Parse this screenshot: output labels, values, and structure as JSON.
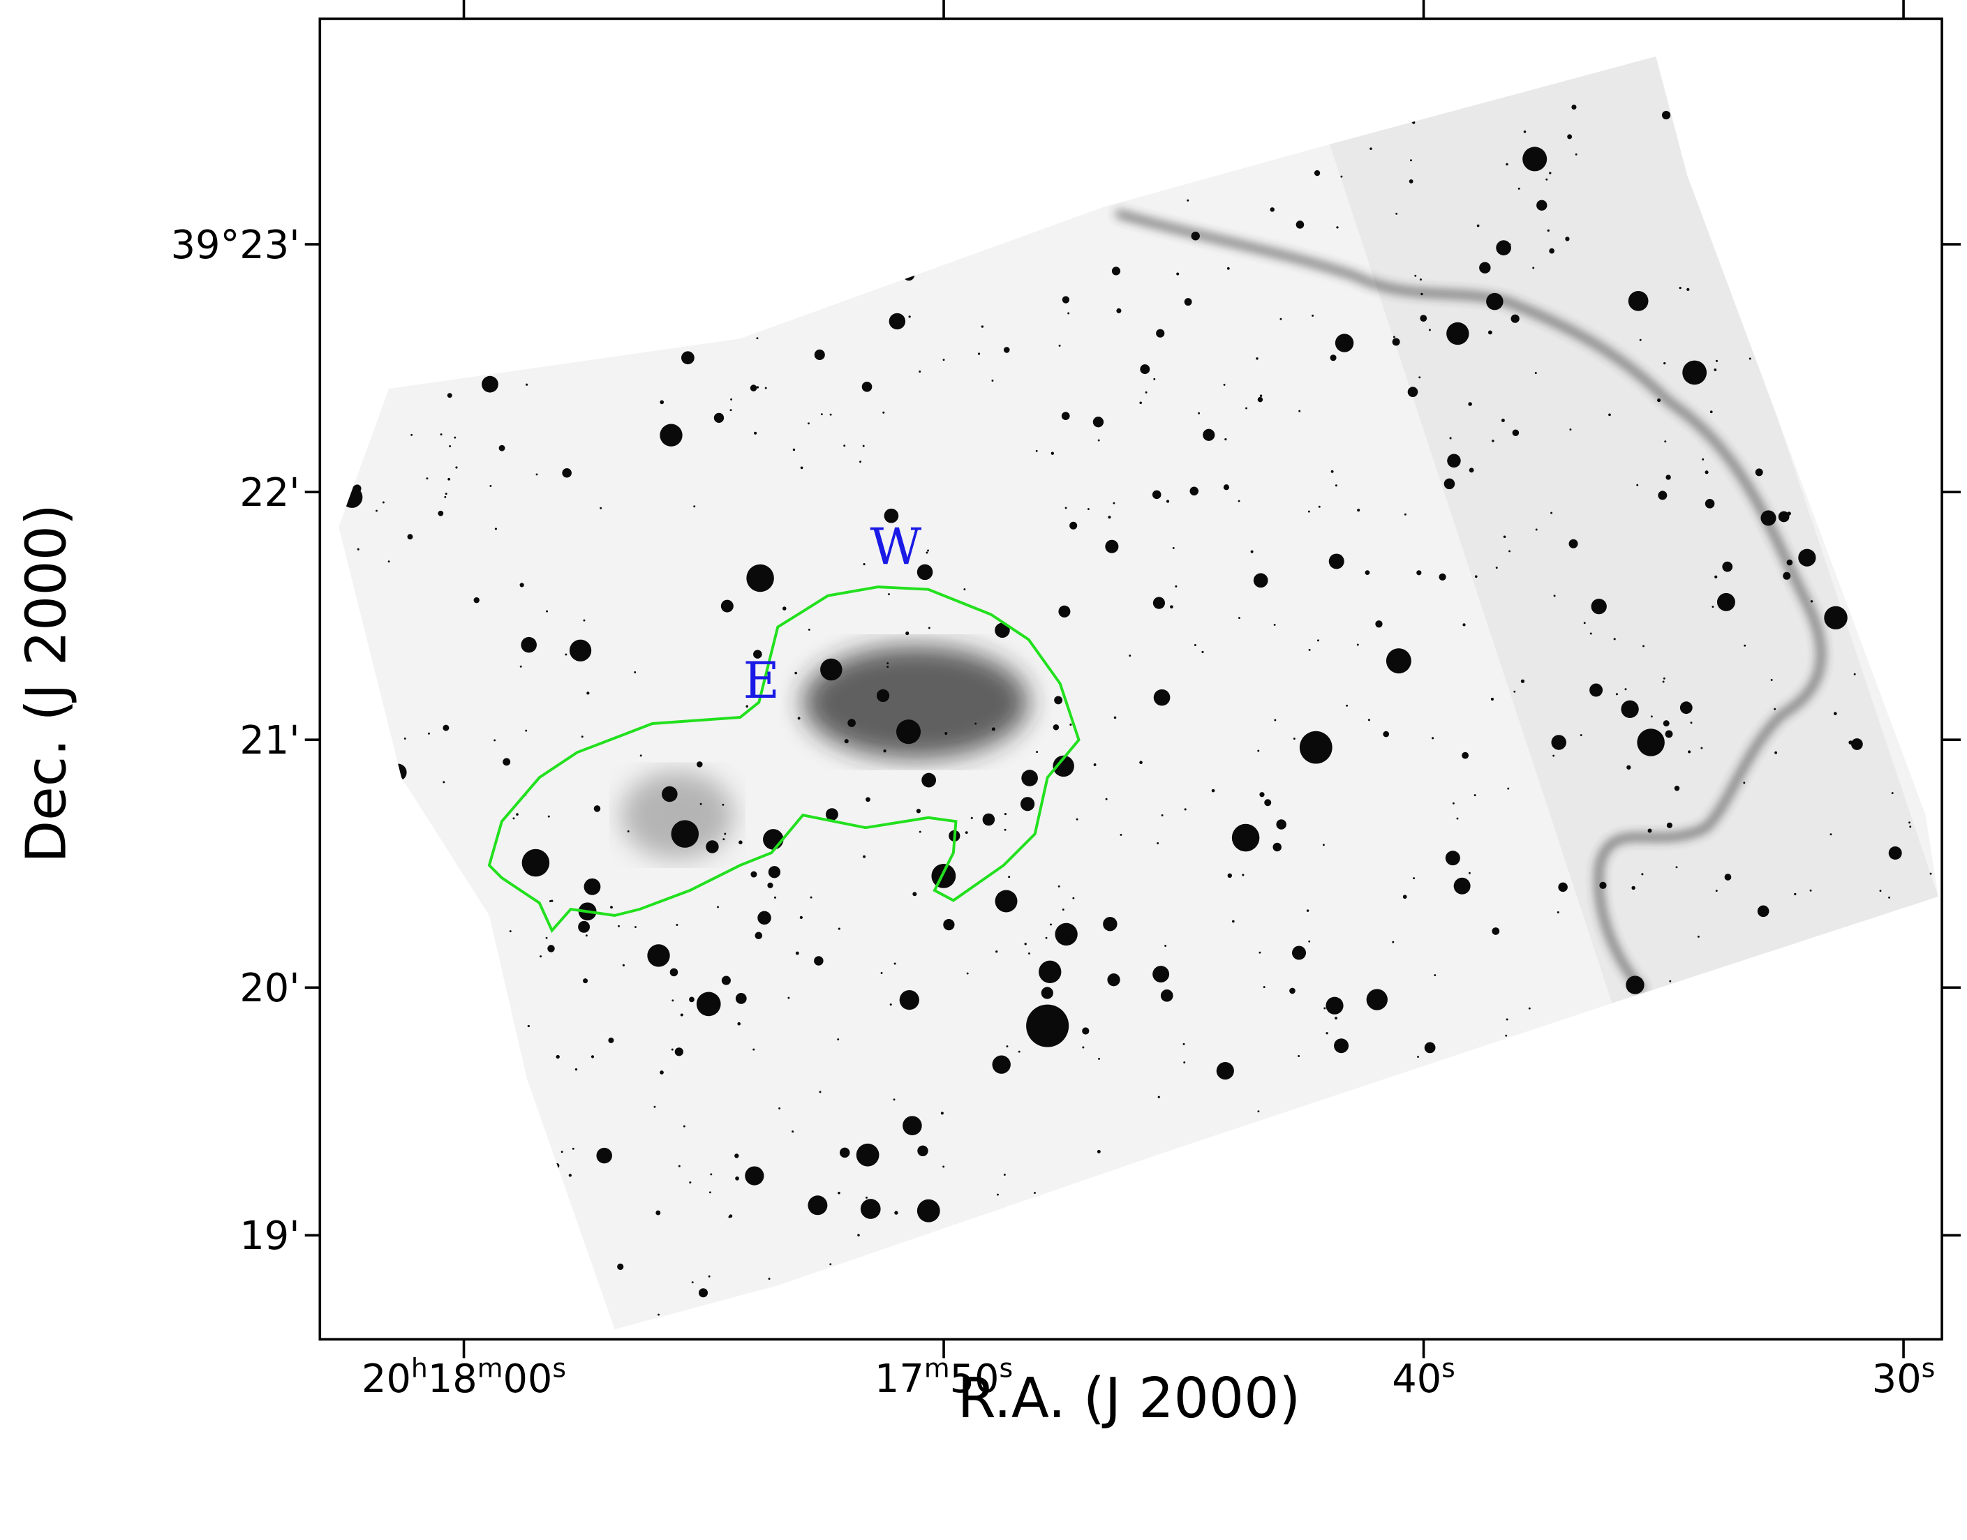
{
  "chart_data": {
    "type": "image",
    "xlabel": "R.A. (J 2000)",
    "ylabel": "Dec. (J 2000)",
    "xlim": [
      63.0,
      29.2
    ],
    "xticks": [
      {
        "value": 60,
        "label": "20h18m00s"
      },
      {
        "value": 50,
        "label": "17m50s"
      },
      {
        "value": 40,
        "label": "40s"
      },
      {
        "value": 30,
        "label": "30s"
      }
    ],
    "ylim": [
      18.58,
      23.91
    ],
    "yticks": [
      {
        "value": 23,
        "label": "39°23'"
      },
      {
        "value": 22,
        "label": "22'"
      },
      {
        "value": 21,
        "label": "21'"
      },
      {
        "value": 20,
        "label": "20'"
      },
      {
        "value": 19,
        "label": "19'"
      }
    ],
    "annotations": [
      {
        "text": "E",
        "x": 53.8,
        "y": 21.24
      },
      {
        "text": "W",
        "x": 51.0,
        "y": 21.78
      }
    ],
    "contour_color": "#22e01e"
  }
}
